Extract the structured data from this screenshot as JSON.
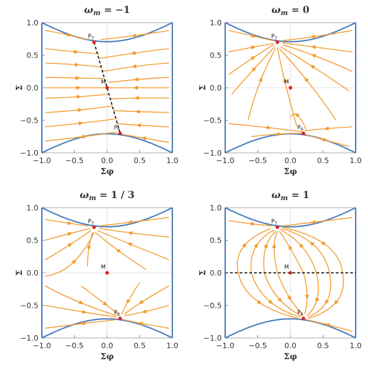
{
  "chart_data": [
    {
      "type": "scatter",
      "title": "ω_m = −1",
      "title_parts": {
        "omega": "ω",
        "sub": "m",
        "rest": " = −1"
      },
      "xlabel": "Σφ",
      "ylabel": "Σ",
      "xlim": [
        -1.0,
        1.0
      ],
      "ylim": [
        -1.0,
        1.0
      ],
      "xticks": [
        "−1.0",
        "−0.5",
        "0.0",
        "0.5",
        "1.0"
      ],
      "yticks": [
        "1.0",
        "0.5",
        "0.0",
        "−0.5",
        "−1.0"
      ],
      "boundary": {
        "center": 0.707,
        "edge": 1.0
      },
      "points": [
        {
          "name": "P7",
          "label": "P",
          "sub": "7",
          "x": -0.2,
          "y": 0.7
        },
        {
          "name": "M",
          "label": "M",
          "sub": "",
          "x": 0.0,
          "y": 0.0
        },
        {
          "name": "P6",
          "label": "P",
          "sub": "6",
          "x": 0.2,
          "y": -0.7
        }
      ],
      "dashed_line": [
        [
          -0.2,
          0.7
        ],
        [
          0.2,
          -0.7
        ]
      ],
      "flow": "toward the line of fixed points through P7, M, P6"
    },
    {
      "type": "scatter",
      "title": "ω_m = 0",
      "title_parts": {
        "omega": "ω",
        "sub": "m",
        "rest": " = 0"
      },
      "xlabel": "Σφ",
      "ylabel": "Σ",
      "xlim": [
        -1.0,
        1.0
      ],
      "ylim": [
        -1.0,
        1.0
      ],
      "xticks": [
        "−1.0",
        "−0.5",
        "0.0",
        "0.5",
        "1.0"
      ],
      "yticks": [
        "1.0",
        "0.5",
        "0.0",
        "−0.5",
        "−1.0"
      ],
      "boundary": {
        "center": 0.707,
        "edge": 1.0
      },
      "points": [
        {
          "name": "P7",
          "label": "P",
          "sub": "7",
          "x": -0.2,
          "y": 0.7
        },
        {
          "name": "M",
          "label": "M",
          "sub": "",
          "x": 0.0,
          "y": 0.0
        },
        {
          "name": "P6",
          "label": "P",
          "sub": "6",
          "x": 0.2,
          "y": -0.7
        }
      ],
      "dashed_line": null,
      "flow": "from P6 toward P7"
    },
    {
      "type": "scatter",
      "title": "ω_m = 1 / 3",
      "title_parts": {
        "omega": "ω",
        "sub": "m",
        "rest": " = 1 / 3"
      },
      "xlabel": "Σφ",
      "ylabel": "Σ",
      "xlim": [
        -1.0,
        1.0
      ],
      "ylim": [
        -1.0,
        1.0
      ],
      "xticks": [
        "−1.0",
        "−0.5",
        "0.0",
        "0.5",
        "1.0"
      ],
      "yticks": [
        "1.0",
        "0.5",
        "0.0",
        "−0.5",
        "−1.0"
      ],
      "boundary": {
        "center": 0.707,
        "edge": 1.0
      },
      "points": [
        {
          "name": "P7",
          "label": "P",
          "sub": "7",
          "x": -0.2,
          "y": 0.7
        },
        {
          "name": "M",
          "label": "M",
          "sub": "",
          "x": 0.0,
          "y": 0.0
        },
        {
          "name": "P6",
          "label": "P",
          "sub": "6",
          "x": 0.2,
          "y": -0.7
        }
      ],
      "dashed_line": null,
      "flow": "attracted to both P7 and P6"
    },
    {
      "type": "scatter",
      "title": "ω_m = 1",
      "title_parts": {
        "omega": "ω",
        "sub": "m",
        "rest": " = 1"
      },
      "xlabel": "Σφ",
      "ylabel": "Σ",
      "xlim": [
        -1.0,
        1.0
      ],
      "ylim": [
        -1.0,
        1.0
      ],
      "xticks": [
        "−1.0",
        "−0.5",
        "0.0",
        "0.5",
        "1.0"
      ],
      "yticks": [
        "1.0",
        "0.5",
        "0.0",
        "−0.5",
        "−1.0"
      ],
      "boundary": {
        "center": 0.707,
        "edge": 1.0
      },
      "points": [
        {
          "name": "P7",
          "label": "P",
          "sub": "7",
          "x": -0.2,
          "y": 0.7
        },
        {
          "name": "M",
          "label": "M",
          "sub": "",
          "x": 0.0,
          "y": 0.0
        },
        {
          "name": "P6",
          "label": "P",
          "sub": "6",
          "x": 0.2,
          "y": -0.7
        }
      ],
      "dashed_line": [
        [
          -1.0,
          0.0
        ],
        [
          1.0,
          0.0
        ]
      ],
      "flow": "loops from the line Σ = 0 to P7 and P6"
    }
  ],
  "colors": {
    "boundary": "#4f7fbf",
    "stream": "#f39a2b",
    "fixed_point": "#e02020",
    "dashed": "#111111"
  }
}
